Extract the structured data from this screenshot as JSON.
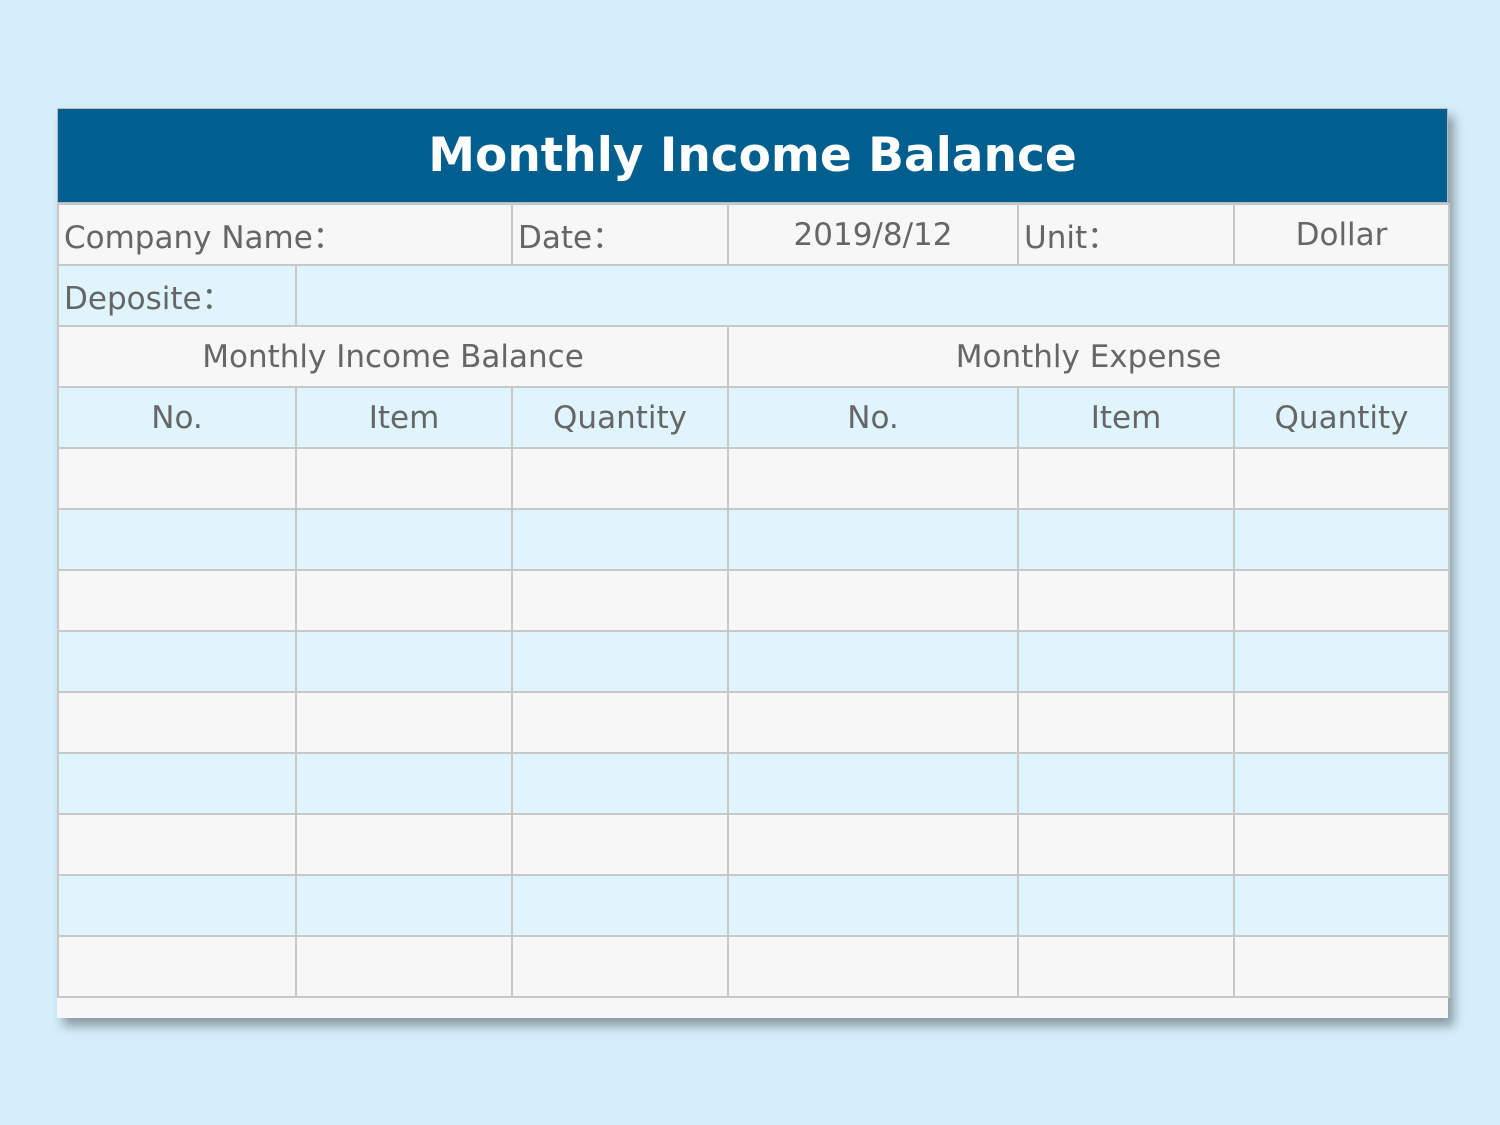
{
  "title": "Monthly Income Balance",
  "info": {
    "company_label": "Company Name：",
    "date_label": "Date：",
    "date_value": "2019/8/12",
    "unit_label": "Unit：",
    "unit_value": "Dollar",
    "deposit_label": "Deposite：",
    "deposit_value": ""
  },
  "sections": {
    "income": "Monthly Income Balance",
    "expense": "Monthly Expense"
  },
  "columns": [
    "No.",
    "Item",
    "Quantity",
    "No.",
    "Item",
    "Quantity"
  ],
  "rows": [
    [
      "",
      "",
      "",
      "",
      "",
      ""
    ],
    [
      "",
      "",
      "",
      "",
      "",
      ""
    ],
    [
      "",
      "",
      "",
      "",
      "",
      ""
    ],
    [
      "",
      "",
      "",
      "",
      "",
      ""
    ],
    [
      "",
      "",
      "",
      "",
      "",
      ""
    ],
    [
      "",
      "",
      "",
      "",
      "",
      ""
    ],
    [
      "",
      "",
      "",
      "",
      "",
      ""
    ],
    [
      "",
      "",
      "",
      "",
      "",
      ""
    ],
    [
      "",
      "",
      "",
      "",
      "",
      ""
    ]
  ],
  "colors": {
    "header": "#005f8e",
    "background": "#d4eefa",
    "row_alt": "#e0f4fd",
    "row": "#f7f7f7"
  }
}
